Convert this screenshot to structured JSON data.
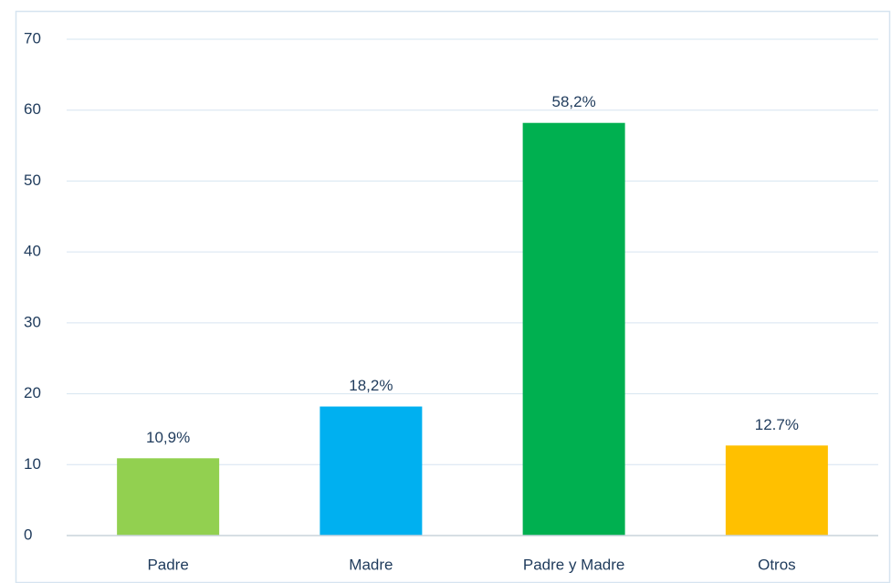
{
  "chart_data": {
    "type": "bar",
    "categories": [
      "Padre",
      "Madre",
      "Padre y Madre",
      "Otros"
    ],
    "values": [
      10.9,
      18.2,
      58.2,
      12.7
    ],
    "value_labels": [
      "10,9%",
      "18,2%",
      "58,2%",
      "12.7%"
    ],
    "colors": [
      "#92d050",
      "#00b0f0",
      "#00b050",
      "#ffc000"
    ],
    "ylim": [
      0,
      70
    ],
    "yticks": [
      0,
      10,
      20,
      30,
      40,
      50,
      60,
      70
    ],
    "grid": true
  }
}
